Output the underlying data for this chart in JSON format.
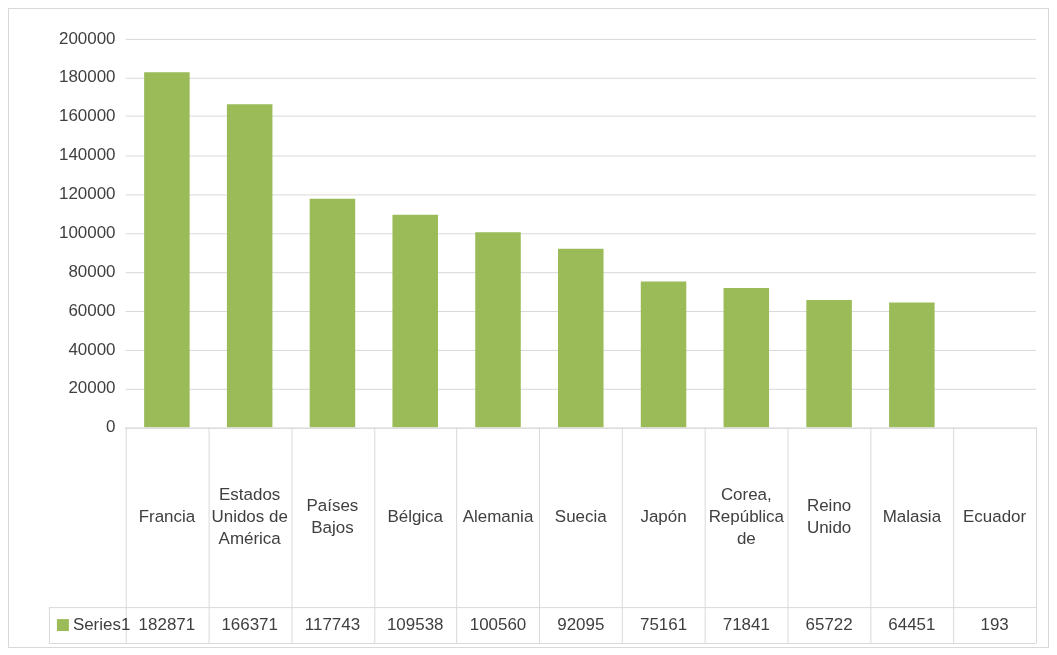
{
  "chart_data": {
    "type": "bar",
    "categories": [
      "Francia",
      "Estados Unidos de América",
      "Países Bajos",
      "Bélgica",
      "Alemania",
      "Suecia",
      "Japón",
      "Corea, República de",
      "Reino Unido",
      "Malasia",
      "Ecuador"
    ],
    "series": [
      {
        "name": "Series1",
        "color": "#9bbb59",
        "values": [
          182871,
          166371,
          117743,
          109538,
          100560,
          92095,
          75161,
          71841,
          65722,
          64451,
          193
        ]
      }
    ],
    "ylim": [
      0,
      200000
    ],
    "yticks": [
      0,
      20000,
      40000,
      60000,
      80000,
      100000,
      120000,
      140000,
      160000,
      180000,
      200000
    ],
    "grid": "y",
    "legend": "bottom",
    "data_labels": true
  }
}
